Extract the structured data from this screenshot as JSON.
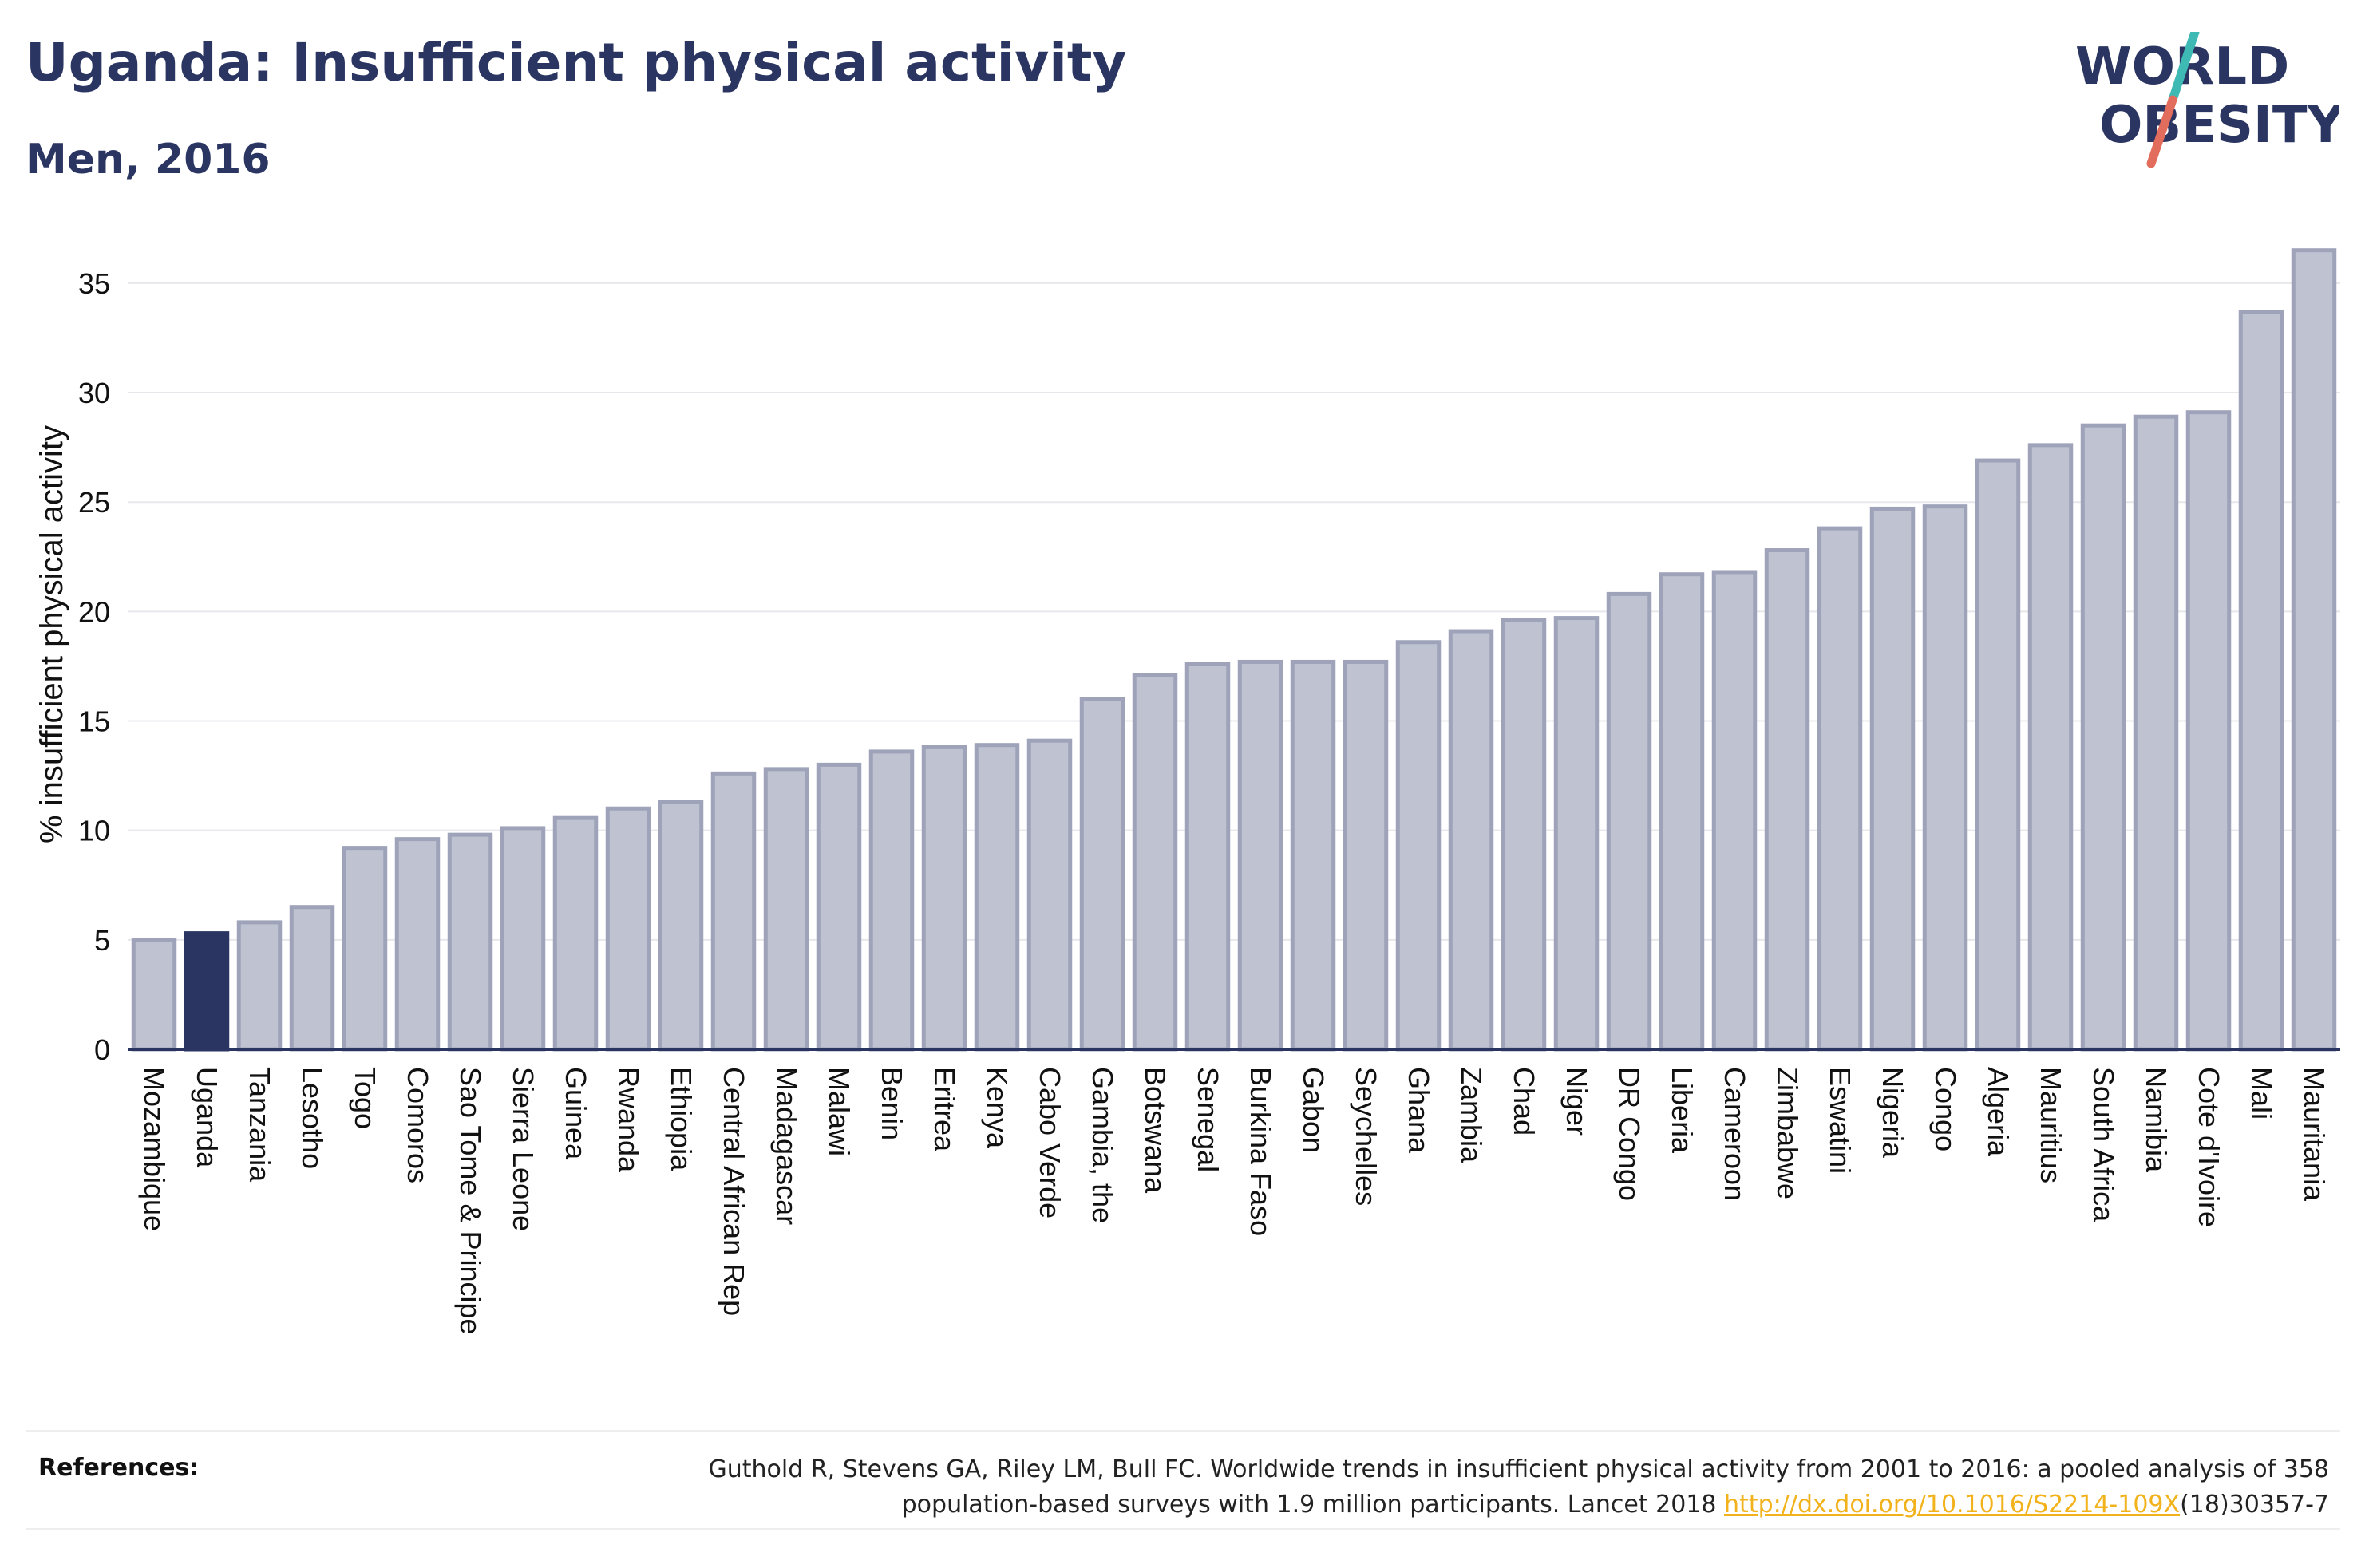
{
  "header": {
    "title": "Uganda: Insufficient physical activity",
    "subtitle": "Men, 2016"
  },
  "logo": {
    "line1": "WORLD",
    "line2": "OBESITY",
    "colors": [
      "#2b3562",
      "#e26d5c",
      "#3fb9b4"
    ]
  },
  "chart_data": {
    "type": "bar",
    "title": "Uganda: Insufficient physical activity",
    "subtitle": "Men, 2016",
    "xlabel": "",
    "ylabel": "% insufficient physical activity",
    "ylim": [
      0,
      37
    ],
    "yticks": [
      0,
      5,
      10,
      15,
      20,
      25,
      30,
      35
    ],
    "grid": true,
    "highlight": "Uganda",
    "colors": {
      "bar": "#bfc3d1",
      "bar_edge": "#9ea3b9",
      "highlight": "#2b3562",
      "axis": "#2b3562",
      "grid": "#e8e8ec"
    },
    "categories": [
      "Mozambique",
      "Uganda",
      "Tanzania",
      "Lesotho",
      "Togo",
      "Comoros",
      "Sao Tome & Principe",
      "Sierra Leone",
      "Guinea",
      "Rwanda",
      "Ethiopia",
      "Central African Rep",
      "Madagascar",
      "Malawi",
      "Benin",
      "Eritrea",
      "Kenya",
      "Cabo Verde",
      "Gambia, the",
      "Botswana",
      "Senegal",
      "Burkina Faso",
      "Gabon",
      "Seychelles",
      "Ghana",
      "Zambia",
      "Chad",
      "Niger",
      "DR Congo",
      "Liberia",
      "Cameroon",
      "Zimbabwe",
      "Eswatini",
      "Nigeria",
      "Congo",
      "Algeria",
      "Mauritius",
      "South Africa",
      "Namibia",
      "Cote d'Ivoire",
      "Mali",
      "Mauritania"
    ],
    "values": [
      5.0,
      5.3,
      5.8,
      6.5,
      9.2,
      9.6,
      9.8,
      10.1,
      10.6,
      11.0,
      11.3,
      12.6,
      12.8,
      13.0,
      13.6,
      13.8,
      13.9,
      14.1,
      16.0,
      17.1,
      17.6,
      17.7,
      17.7,
      17.7,
      18.6,
      19.1,
      19.6,
      19.7,
      20.8,
      21.7,
      21.8,
      22.8,
      23.8,
      24.7,
      24.8,
      26.9,
      27.6,
      28.5,
      28.9,
      29.1,
      33.7,
      36.5
    ]
  },
  "references": {
    "label": "References:",
    "line1": "Guthold R, Stevens GA, Riley LM, Bull FC. Worldwide trends in insufficient physical activity from 2001 to 2016: a pooled analysis of 358",
    "line2_pre": "population-based surveys with 1.9 million participants. Lancet 2018 ",
    "link": "http://dx.doi.org/10.1016/S2214-109X",
    "line2_post": "(18)30357-7"
  }
}
